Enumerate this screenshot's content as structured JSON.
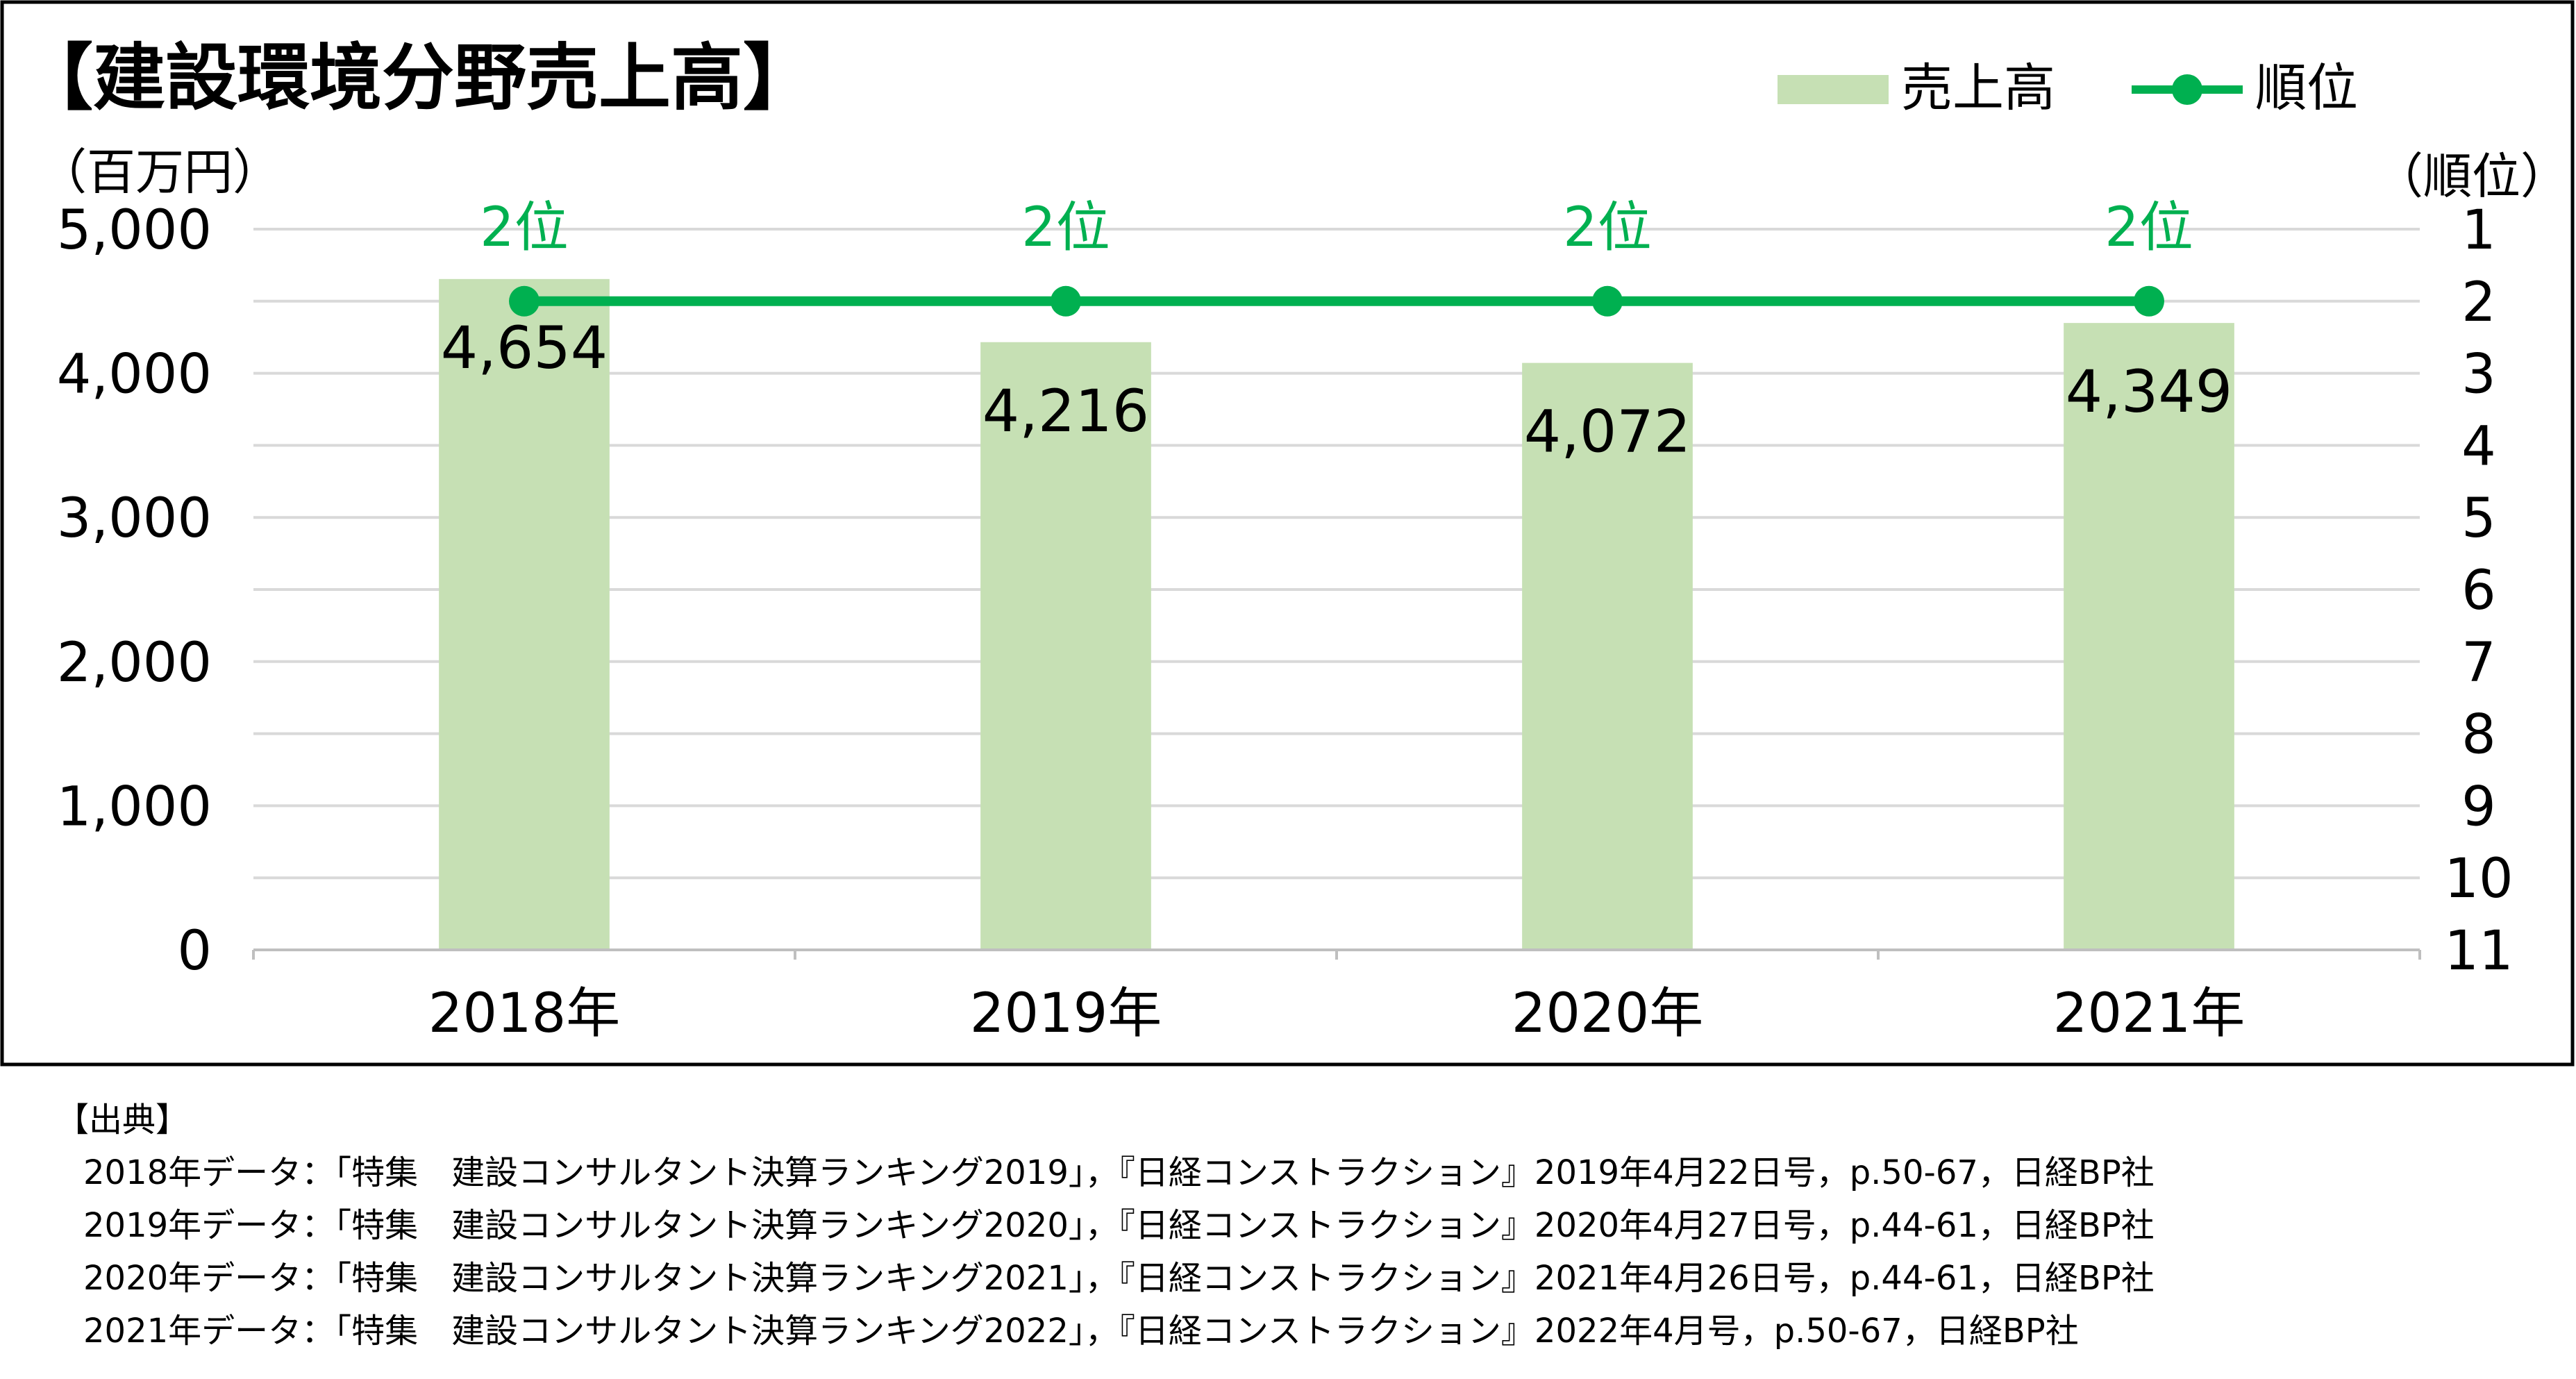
{
  "chart_data": {
    "type": "bar",
    "title": "【建設環境分野売上高】",
    "y_unit_left": "（百万円）",
    "y_unit_right": "（順位）",
    "categories": [
      "2018年",
      "2019年",
      "2020年",
      "2021年"
    ],
    "series": [
      {
        "name": "売上高",
        "type": "bar",
        "axis": "left",
        "values": [
          4654,
          4216,
          4072,
          4349
        ],
        "labels": [
          "4,654",
          "4,216",
          "4,072",
          "4,349"
        ],
        "color": "#c6e0b4"
      },
      {
        "name": "順位",
        "type": "line",
        "axis": "right",
        "reversed": true,
        "values": [
          2,
          2,
          2,
          2
        ],
        "labels": [
          "2位",
          "2位",
          "2位",
          "2位"
        ],
        "color": "#00b050"
      }
    ],
    "ylim": [
      0,
      5000
    ],
    "y_ticks": [
      "0",
      "1,000",
      "2,000",
      "3,000",
      "4,000",
      "5,000"
    ],
    "y2lim": [
      1,
      11
    ],
    "y2_ticks": [
      "1",
      "2",
      "3",
      "4",
      "5",
      "6",
      "7",
      "8",
      "9",
      "10",
      "11"
    ],
    "grid": true,
    "legend": "top-right"
  },
  "source": {
    "heading": "【出典】",
    "lines": [
      "2018年データ：「特集　建設コンサルタント決算ランキング2019」，『日経コンストラクション』2019年4月22日号，p.50-67，日経BP社",
      "2019年データ：「特集　建設コンサルタント決算ランキング2020」，『日経コンストラクション』2020年4月27日号，p.44-61，日経BP社",
      "2020年データ：「特集　建設コンサルタント決算ランキング2021」，『日経コンストラクション』2021年4月26日号，p.44-61，日経BP社",
      "2021年データ：「特集　建設コンサルタント決算ランキング2022」，『日経コンストラクション』2022年4月号，p.50-67，日経BP社"
    ]
  }
}
